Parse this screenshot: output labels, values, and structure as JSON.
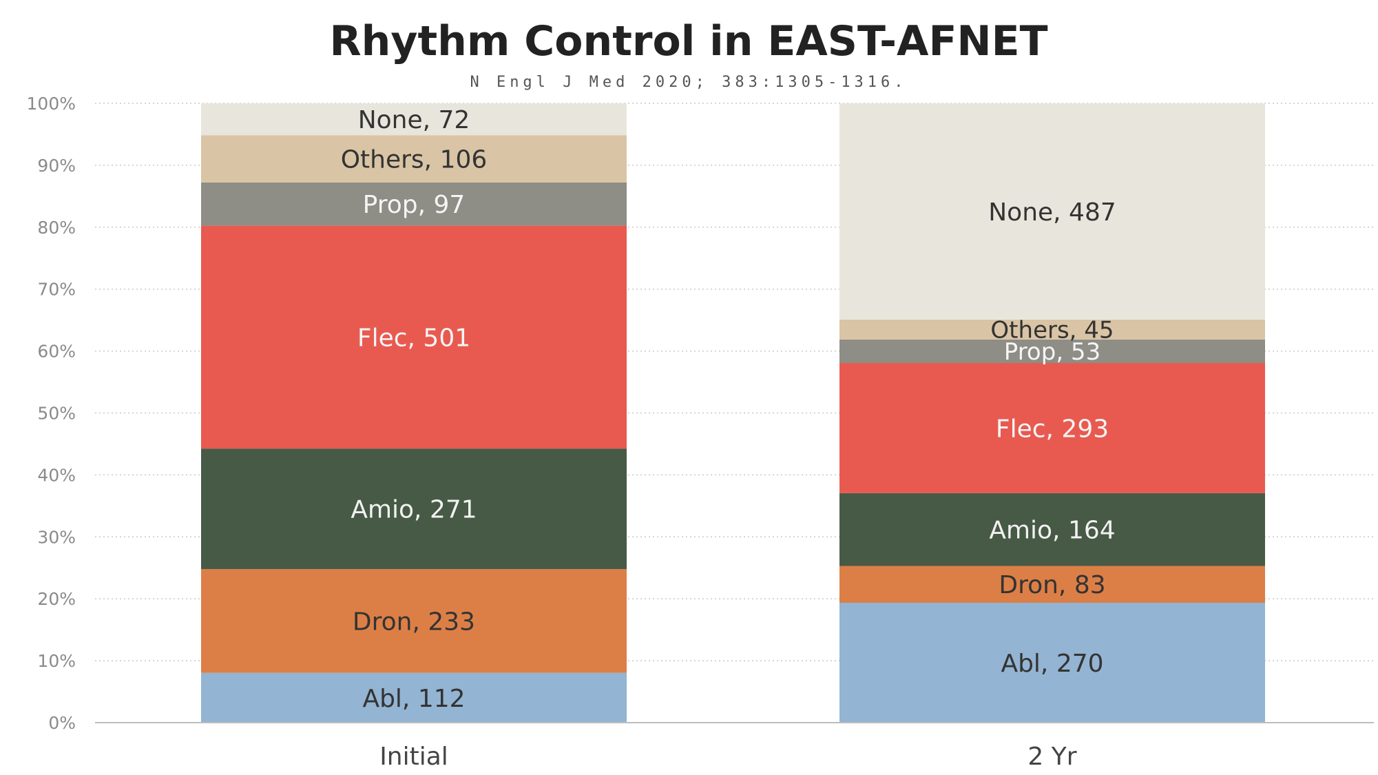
{
  "chart_data": {
    "type": "bar",
    "stacked": true,
    "normalized": true,
    "title": "Rhythm Control in EAST-AFNET",
    "subtitle": "N Engl J Med 2020; 383:1305-1316.",
    "categories": [
      "Initial",
      "2 Yr"
    ],
    "ylim": [
      0,
      100
    ],
    "yticks": [
      "0%",
      "10%",
      "20%",
      "30%",
      "40%",
      "50%",
      "60%",
      "70%",
      "80%",
      "90%",
      "100%"
    ],
    "grid": true,
    "series": [
      {
        "name": "Abl",
        "values": [
          112,
          270
        ],
        "labels": [
          "Abl, 112",
          "Abl, 270"
        ],
        "color": "#93b4d2",
        "text_color": "#333333"
      },
      {
        "name": "Dron",
        "values": [
          233,
          83
        ],
        "labels": [
          "Dron, 233",
          "Dron, 83"
        ],
        "color": "#dc7f47",
        "text_color": "#333333"
      },
      {
        "name": "Amio",
        "values": [
          271,
          164
        ],
        "labels": [
          "Amio, 271",
          "Amio, 164"
        ],
        "color": "#475a46",
        "text_color": "#f2f2f2"
      },
      {
        "name": "Flec",
        "values": [
          501,
          293
        ],
        "labels": [
          "Flec, 501",
          "Flec, 293"
        ],
        "color": "#e85a50",
        "text_color": "#f5f5f5"
      },
      {
        "name": "Prop",
        "values": [
          97,
          53
        ],
        "labels": [
          "Prop, 97",
          "Prop, 53"
        ],
        "color": "#8e8d86",
        "text_color": "#f5f5f5"
      },
      {
        "name": "Others",
        "values": [
          106,
          45
        ],
        "labels": [
          "Others, 106",
          "Others, 45"
        ],
        "color": "#d9c4a5",
        "text_color": "#333333"
      },
      {
        "name": "None",
        "values": [
          72,
          487
        ],
        "labels": [
          "None, 72",
          "None, 487"
        ],
        "color": "#e8e6dc",
        "text_color": "#333333"
      }
    ]
  }
}
